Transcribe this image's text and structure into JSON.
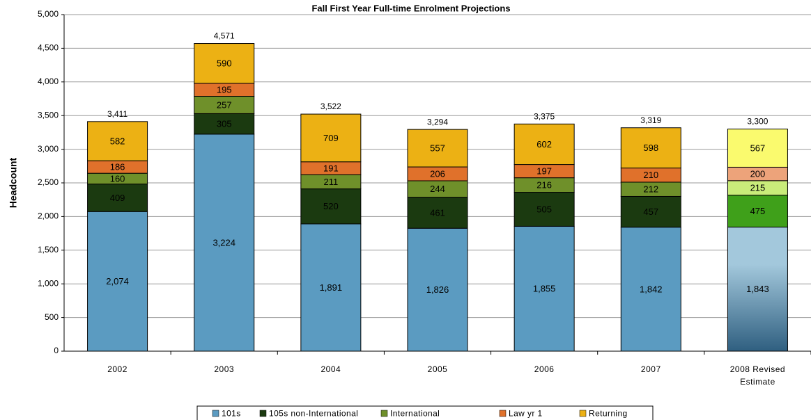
{
  "chart_data": {
    "type": "stacked_bar",
    "title": "Fall First Year Full-time Enrolment Projections",
    "y_label": "Headcount",
    "categories": [
      "2002",
      "2003",
      "2004",
      "2005",
      "2006",
      "2007",
      "2008 Revised Estimate"
    ],
    "series": [
      {
        "name": "101s",
        "color": "#5b9bc1",
        "estimate_color": "#a3c8dc",
        "values": [
          2074,
          3224,
          1891,
          1826,
          1855,
          1842,
          1843
        ],
        "value_labels": [
          "2,074",
          "3,224",
          "1,891",
          "1,826",
          "1,855",
          "1,842",
          "1,843"
        ]
      },
      {
        "name": "105s non-International",
        "color": "#1b3a10",
        "estimate_color": "#3fa01a",
        "values": [
          409,
          305,
          520,
          461,
          505,
          457,
          475
        ]
      },
      {
        "name": "International",
        "color": "#6f902a",
        "estimate_color": "#c9ec7a",
        "values": [
          160,
          257,
          211,
          244,
          216,
          212,
          215
        ]
      },
      {
        "name": "Law yr 1",
        "color": "#e0712b",
        "estimate_color": "#eda37a",
        "values": [
          186,
          195,
          191,
          206,
          197,
          210,
          200
        ]
      },
      {
        "name": "Returning",
        "color": "#ecb114",
        "estimate_color": "#fafa6e",
        "values": [
          582,
          590,
          709,
          557,
          602,
          598,
          567
        ]
      }
    ],
    "totals": [
      3411,
      4571,
      3522,
      3294,
      3375,
      3319,
      3300
    ],
    "total_labels": [
      "3,411",
      "4,571",
      "3,522",
      "3,294",
      "3,375",
      "3,319",
      "3,300"
    ],
    "ylim": [
      0,
      5000
    ],
    "yticks": [
      0,
      500,
      {
        "value": 1000,
        "label": "1,000"
      },
      {
        "value": 1500,
        "label": "1,500"
      },
      {
        "value": 2000,
        "label": "2,000"
      },
      {
        "value": 2500,
        "label": "2,500"
      },
      {
        "value": 3000,
        "label": "3,000"
      },
      {
        "value": 3500,
        "label": "3,500"
      },
      {
        "value": 4000,
        "label": "4,000"
      },
      {
        "value": 4500,
        "label": "4,500"
      },
      {
        "value": 5000,
        "label": "5,000"
      }
    ],
    "grid": true,
    "legend": "bottom"
  }
}
